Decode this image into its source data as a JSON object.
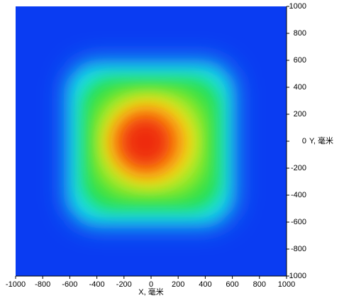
{
  "chart_data": {
    "type": "heatmap",
    "xlabel": "X, 毫米",
    "ylabel": "Y, 毫米",
    "xlim": [
      -1000,
      1000
    ],
    "ylim": [
      -1000,
      1000
    ],
    "xticks": [
      -1000,
      -800,
      -600,
      -400,
      -200,
      0,
      200,
      400,
      600,
      800,
      1000
    ],
    "yticks": [
      -1000,
      -800,
      -600,
      -400,
      -200,
      0,
      200,
      400,
      600,
      800,
      1000
    ]
  }
}
